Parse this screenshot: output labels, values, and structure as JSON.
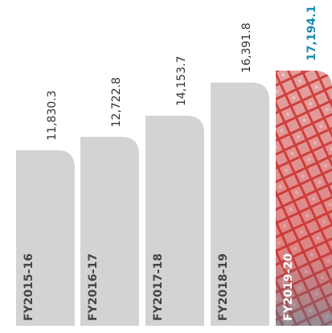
{
  "chart_data": {
    "type": "bar",
    "categories": [
      "FY2015-16",
      "FY2016-17",
      "FY2017-18",
      "FY2018-19",
      "FY2019-20"
    ],
    "values": [
      11830.3,
      12722.8,
      14153.7,
      16391.8,
      17194.1
    ],
    "value_labels": [
      "11,830.3",
      "12,722.8",
      "14,153.7",
      "16,391.8",
      "17,194.1"
    ],
    "color": "#d3d3d3",
    "highlight_color": "#c9242b",
    "highlight_label_color": "#1a8db3"
  }
}
